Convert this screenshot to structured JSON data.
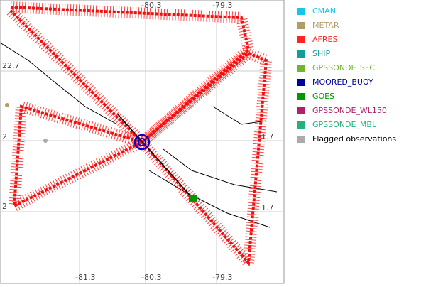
{
  "map": {
    "top_labels": [
      "-80.3",
      "-79.3"
    ],
    "bottom_labels": [
      "-81.3",
      "-80.3",
      "-79.3"
    ],
    "left_labels": [
      "22.7",
      "2",
      "2"
    ],
    "right_labels": [
      "1.7",
      "1.7"
    ]
  },
  "legend": [
    {
      "name": "CMAN",
      "color": "#19c3ea"
    },
    {
      "name": "METAR",
      "color": "#b39b6c"
    },
    {
      "name": "AFRES",
      "color": "#ff2222"
    },
    {
      "name": "SHIP",
      "color": "#139c9c"
    },
    {
      "name": "GPSSONDE_SFC",
      "color": "#76b52a"
    },
    {
      "name": "MOORED_BUOY",
      "color": "#000099"
    },
    {
      "name": "GOES",
      "color": "#009900"
    },
    {
      "name": "GPSSONDE_WL150",
      "color": "#b31f6b"
    },
    {
      "name": "GPSSONDE_MBL",
      "color": "#23b07a"
    },
    {
      "name": "Flagged observations",
      "color": "#aaaaaa"
    }
  ]
}
